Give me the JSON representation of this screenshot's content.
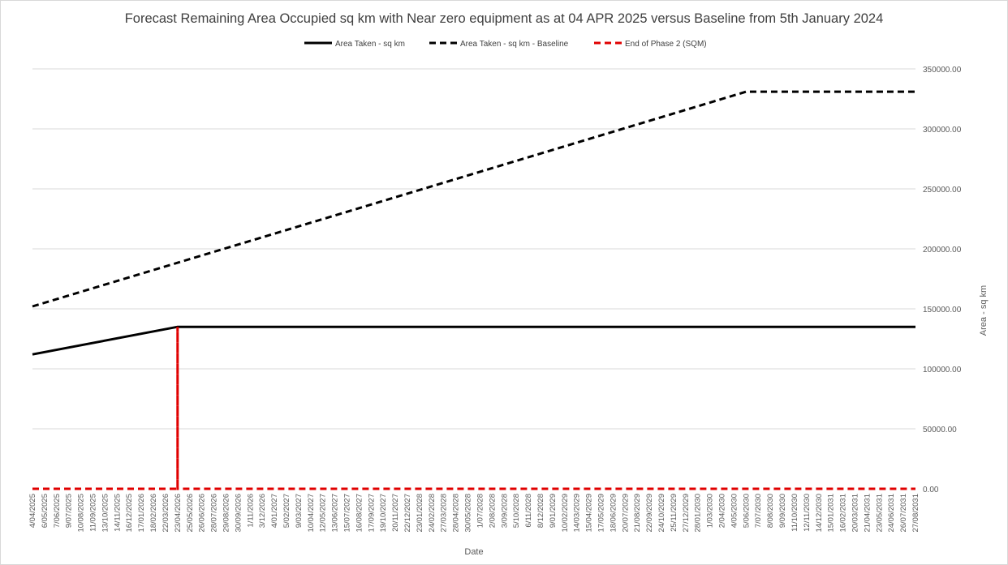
{
  "chart_data": {
    "type": "line",
    "title": "Forecast Remaining Area Occupied sq km with Near zero equipment as at 04 APR 2025 versus Baseline from 5th January 2024",
    "xlabel": "Date",
    "ylabel": "Area - sq km",
    "ylim": [
      0,
      350000
    ],
    "y_ticks": [
      "0.00",
      "50000.00",
      "100000.00",
      "150000.00",
      "200000.00",
      "250000.00",
      "300000.00",
      "350000.00"
    ],
    "grid": true,
    "legend_position": "top",
    "x": [
      "4/04/2025",
      "6/05/2025",
      "7/06/2025",
      "9/07/2025",
      "10/08/2025",
      "11/09/2025",
      "13/10/2025",
      "14/11/2025",
      "16/12/2025",
      "17/01/2026",
      "18/02/2026",
      "22/03/2026",
      "23/04/2026",
      "25/05/2026",
      "26/06/2026",
      "28/07/2026",
      "29/08/2026",
      "30/09/2026",
      "1/11/2026",
      "3/12/2026",
      "4/01/2027",
      "5/02/2027",
      "9/03/2027",
      "10/04/2027",
      "12/05/2027",
      "13/06/2027",
      "15/07/2027",
      "16/08/2027",
      "17/09/2027",
      "19/10/2027",
      "20/11/2027",
      "22/12/2027",
      "23/01/2028",
      "24/02/2028",
      "27/03/2028",
      "28/04/2028",
      "30/05/2028",
      "1/07/2028",
      "2/08/2028",
      "3/09/2028",
      "5/10/2028",
      "6/11/2028",
      "8/12/2028",
      "9/01/2029",
      "10/02/2029",
      "14/03/2029",
      "15/04/2029",
      "17/05/2029",
      "18/06/2029",
      "20/07/2029",
      "21/08/2029",
      "22/09/2029",
      "24/10/2029",
      "25/11/2029",
      "27/12/2029",
      "28/01/2030",
      "1/03/2030",
      "2/04/2030",
      "4/05/2030",
      "5/06/2030",
      "7/07/2030",
      "8/08/2030",
      "9/09/2030",
      "11/10/2030",
      "12/11/2030",
      "14/12/2030",
      "15/01/2031",
      "16/02/2031",
      "20/03/2031",
      "21/04/2031",
      "23/05/2031",
      "24/06/2031",
      "26/07/2031",
      "27/08/2031"
    ],
    "series": [
      {
        "name": "Area Taken - sq km",
        "color": "#000000",
        "style": "solid",
        "points": [
          {
            "x": "4/04/2025",
            "y": 112000
          },
          {
            "x": "23/04/2026",
            "y": 135000
          },
          {
            "x": "27/08/2031",
            "y": 135000
          }
        ]
      },
      {
        "name": "Area Taken - sq km - Baseline",
        "color": "#000000",
        "style": "dashed",
        "points": [
          {
            "x": "4/04/2025",
            "y": 152000
          },
          {
            "x": "5/06/2030",
            "y": 331000
          },
          {
            "x": "27/08/2031",
            "y": 331000
          }
        ]
      },
      {
        "name": "End of Phase 2 (SQM)",
        "color": "#e00000",
        "style": "dashed",
        "points": [
          {
            "x": "4/04/2025",
            "y": 0
          },
          {
            "x": "23/04/2026",
            "y": 0
          },
          {
            "x": "23/04/2026",
            "y": 135000
          },
          {
            "x": "23/04/2026",
            "y": 0
          },
          {
            "x": "27/08/2031",
            "y": 0
          }
        ]
      }
    ]
  }
}
